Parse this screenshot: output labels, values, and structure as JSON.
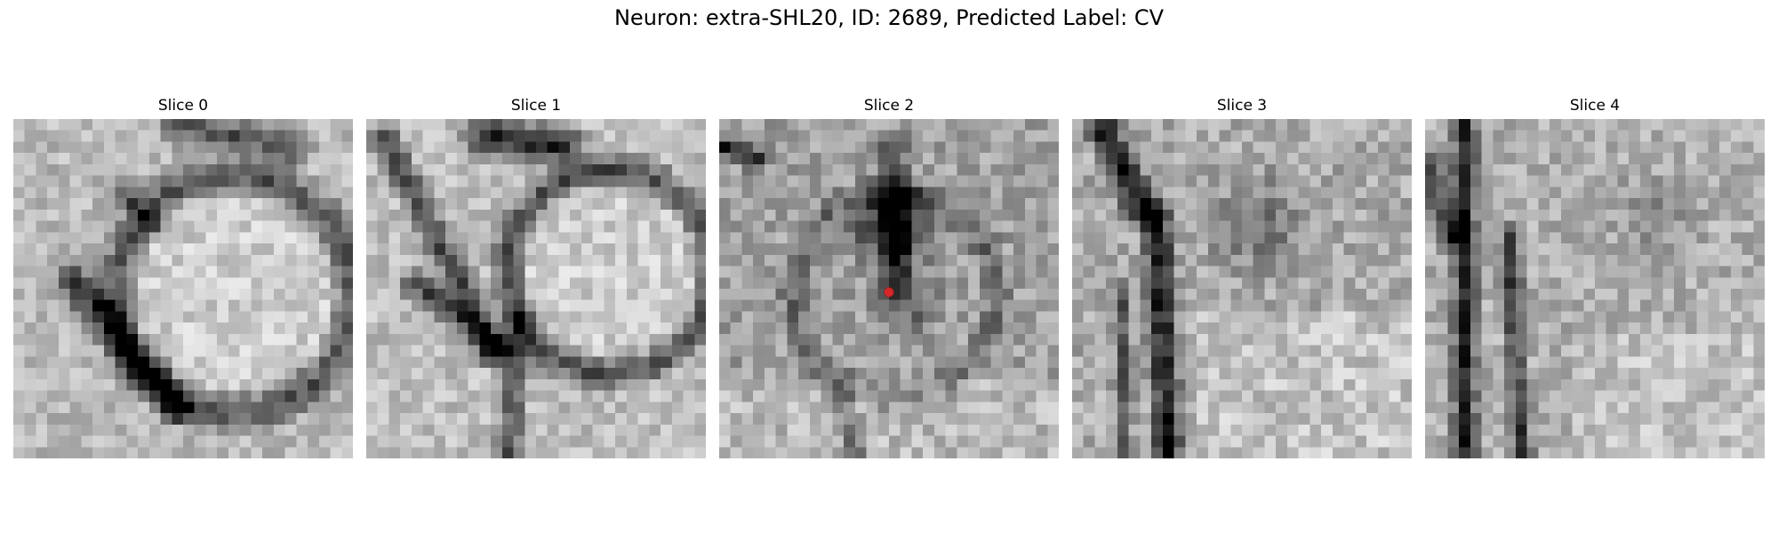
{
  "figure": {
    "title": "Neuron: extra-SHL20, ID: 2689, Predicted Label: CV"
  },
  "slices": [
    {
      "label": "Slice 0",
      "pattern": "round-cell-with-dark-left-boundary"
    },
    {
      "label": "Slice 1",
      "pattern": "round-cell-with-triangle-upper-left"
    },
    {
      "label": "Slice 2",
      "pattern": "dark-central-blob",
      "has_marker": true
    },
    {
      "label": "Slice 3",
      "pattern": "dark-left-vertical-stripe"
    },
    {
      "label": "Slice 4",
      "pattern": "double-vertical-stripes"
    }
  ],
  "colormap": "grayscale",
  "marker_color": "#d62728"
}
